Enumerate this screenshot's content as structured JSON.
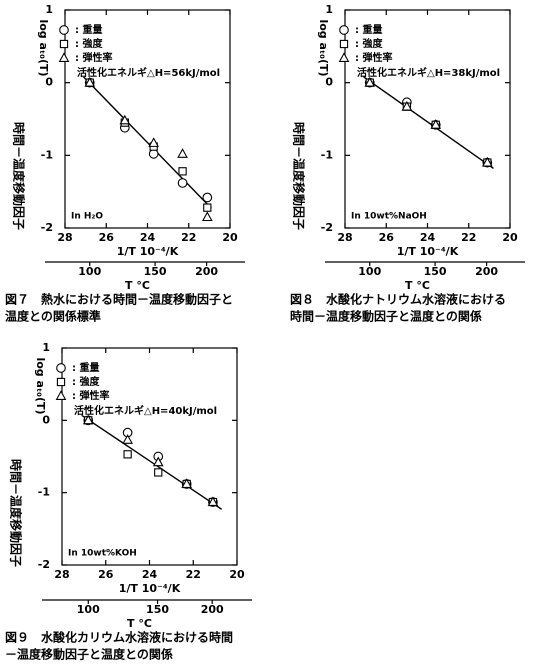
{
  "chart_data": [
    {
      "type": "scatter",
      "ylabel": "時間－温度移動因子",
      "ylabel2": "log aₜ₀(T)",
      "xlabel": "1/T 10⁻⁴/K",
      "x2label": "T °C",
      "xlim": [
        28,
        20
      ],
      "xticks": [
        28,
        26,
        24,
        22,
        20
      ],
      "ylim": [
        -2,
        1
      ],
      "yticks": [
        1,
        0,
        -1,
        -2
      ],
      "x2ticks": [
        100,
        150,
        200
      ],
      "annotation": "活性化エネルギ△H=56kJ/mol",
      "medium": "In H₂O",
      "caption": [
        "図７　熱水における時間－温度移動因子と",
        "温度との関係標準"
      ],
      "series": [
        {
          "name": ": 重量",
          "marker": "circle",
          "color": "#000",
          "x": [
            26.8,
            25.1,
            23.7,
            22.3,
            21.1
          ],
          "values": [
            0,
            -0.62,
            -0.98,
            -1.38,
            -1.58
          ]
        },
        {
          "name": ": 強度",
          "marker": "square",
          "color": "#000",
          "x": [
            26.8,
            25.1,
            23.7,
            22.3,
            21.1
          ],
          "values": [
            0,
            -0.55,
            -0.88,
            -1.22,
            -1.72
          ]
        },
        {
          "name": ": 弾性率",
          "marker": "triangle",
          "color": "#000",
          "x": [
            26.8,
            25.1,
            23.7,
            22.3,
            21.1
          ],
          "values": [
            0,
            -0.52,
            -0.83,
            -0.98,
            -1.85
          ]
        }
      ],
      "fit": {
        "x": [
          27.1,
          20.9
        ],
        "y": [
          0.08,
          -1.73
        ]
      }
    },
    {
      "type": "scatter",
      "ylabel": "時間－温度移動因子",
      "ylabel2": "log aₜ₀(T)",
      "xlabel": "1/T 10⁻⁴/K",
      "x2label": "T °C",
      "xlim": [
        28,
        20
      ],
      "xticks": [
        28,
        26,
        24,
        22,
        20
      ],
      "ylim": [
        -2,
        1
      ],
      "yticks": [
        1,
        0,
        -1,
        -2
      ],
      "x2ticks": [
        100,
        150,
        200
      ],
      "annotation": "活性化エネルギ△H=38kJ/mol",
      "medium": "In 10wt%NaOH",
      "caption": [
        "図８　水酸化ナトリウム水溶液における",
        "時間－温度移動因子と温度との関係"
      ],
      "series": [
        {
          "name": ": 重量",
          "marker": "circle",
          "color": "#000",
          "x": [
            26.8,
            25.0,
            23.6,
            21.1
          ],
          "values": [
            0,
            -0.27,
            -0.58,
            -1.1
          ]
        },
        {
          "name": ": 強度",
          "marker": "square",
          "color": "#000",
          "x": [
            26.8,
            25.0,
            23.6,
            21.1
          ],
          "values": [
            0,
            -0.33,
            -0.58,
            -1.1
          ]
        },
        {
          "name": ": 弾性率",
          "marker": "triangle",
          "color": "#000",
          "x": [
            26.8,
            25.0,
            23.6,
            21.1
          ],
          "values": [
            0,
            -0.33,
            -0.58,
            -1.1
          ]
        }
      ],
      "fit": {
        "x": [
          27.1,
          20.8
        ],
        "y": [
          0.08,
          -1.18
        ]
      }
    },
    {
      "type": "scatter",
      "ylabel": "時間－温度移動因子",
      "ylabel2": "log aₜ₀(T)",
      "xlabel": "1/T 10⁻⁴/K",
      "x2label": "T °C",
      "xlim": [
        28,
        20
      ],
      "xticks": [
        28,
        26,
        24,
        22,
        20
      ],
      "ylim": [
        -2,
        1
      ],
      "yticks": [
        1,
        0,
        -1,
        -2
      ],
      "x2ticks": [
        100,
        150,
        200
      ],
      "annotation": "活性化エネルギ△H=40kJ/mol",
      "medium": "In 10wt%KOH",
      "caption": [
        "図９　水酸化カリウム水溶液における時間",
        "－温度移動因子と温度との関係"
      ],
      "series": [
        {
          "name": ": 重量",
          "marker": "circle",
          "color": "#000",
          "x": [
            26.8,
            25.0,
            23.6,
            22.3,
            21.1
          ],
          "values": [
            0,
            -0.17,
            -0.5,
            -0.88,
            -1.13
          ]
        },
        {
          "name": ": 強度",
          "marker": "square",
          "color": "#000",
          "x": [
            26.8,
            25.0,
            23.6,
            22.3,
            21.1
          ],
          "values": [
            0,
            -0.47,
            -0.72,
            -0.88,
            -1.13
          ]
        },
        {
          "name": ": 弾性率",
          "marker": "triangle",
          "color": "#000",
          "x": [
            26.8,
            25.0,
            23.6,
            22.3,
            21.1
          ],
          "values": [
            0,
            -0.27,
            -0.58,
            -0.88,
            -1.13
          ]
        }
      ],
      "fit": {
        "x": [
          27.1,
          20.7
        ],
        "y": [
          0.07,
          -1.23
        ]
      }
    }
  ]
}
